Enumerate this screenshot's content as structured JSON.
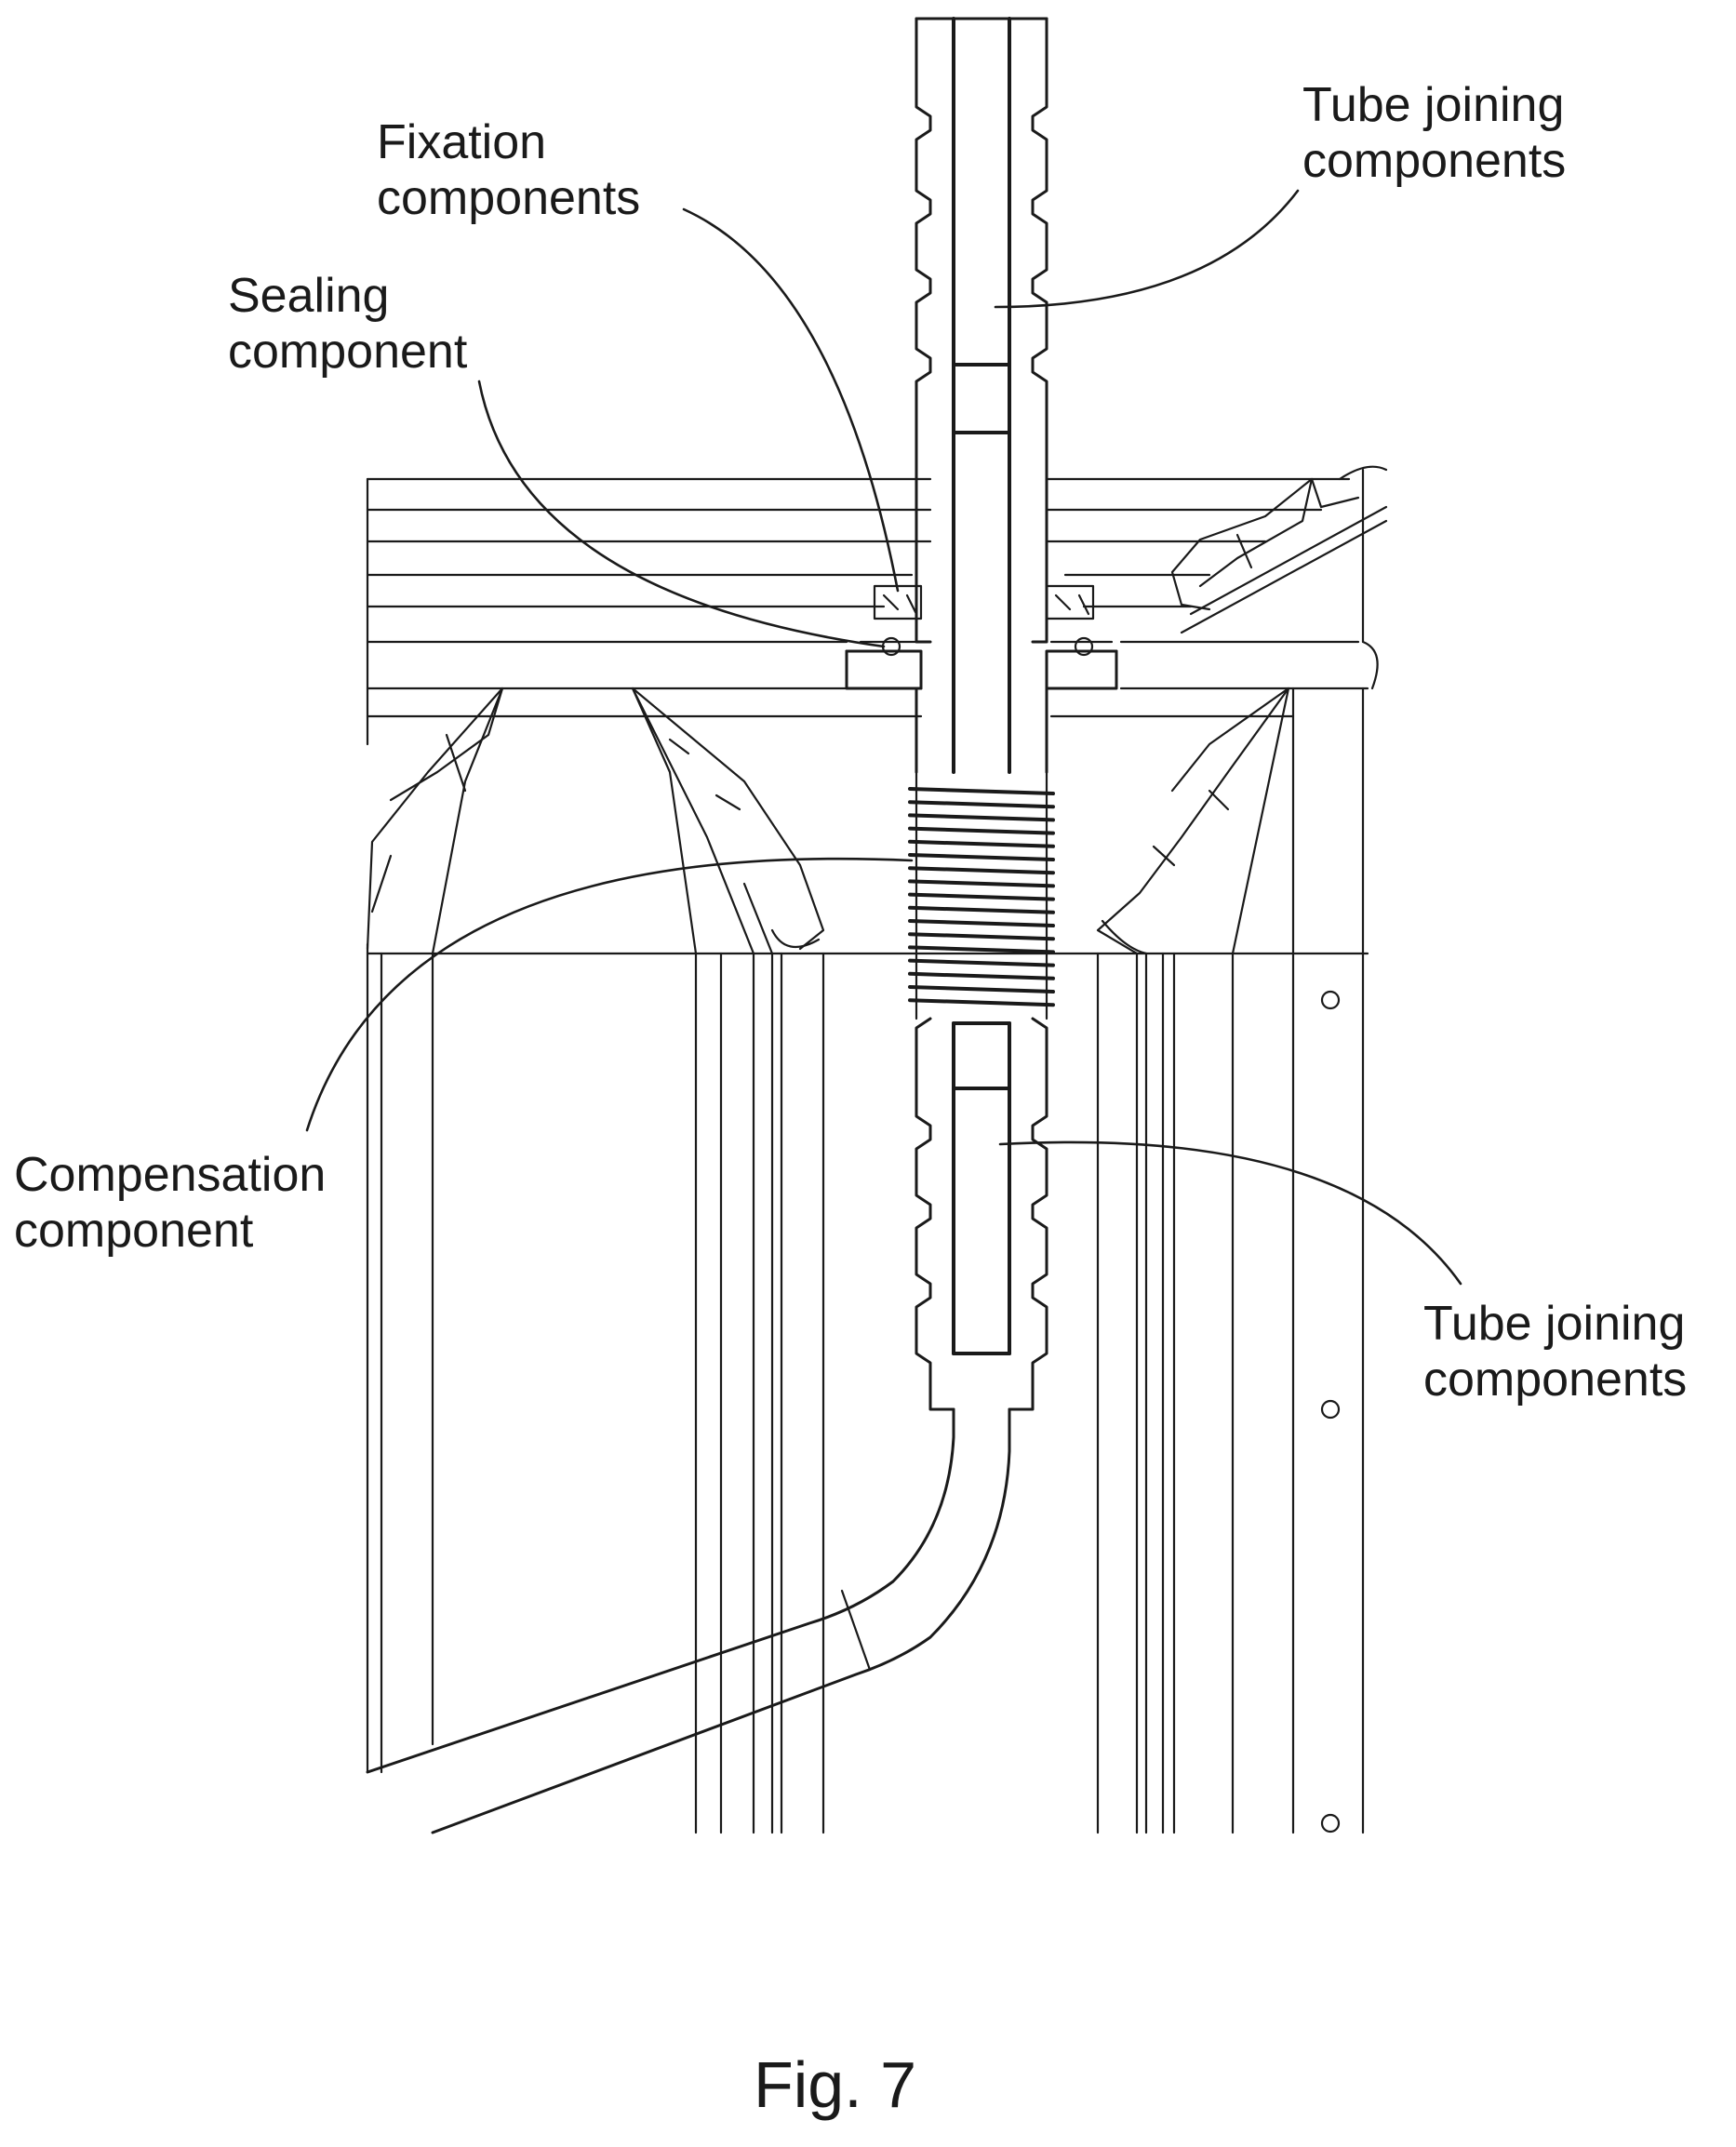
{
  "figure": {
    "caption": "Fig. 7",
    "labels": {
      "fixation": [
        "Fixation",
        "components"
      ],
      "tube_top": [
        "Tube joining",
        "components"
      ],
      "sealing": [
        "Sealing",
        "component"
      ],
      "compensation": [
        "Compensation",
        "component"
      ],
      "tube_bottom": [
        "Tube joining",
        "components"
      ]
    }
  }
}
